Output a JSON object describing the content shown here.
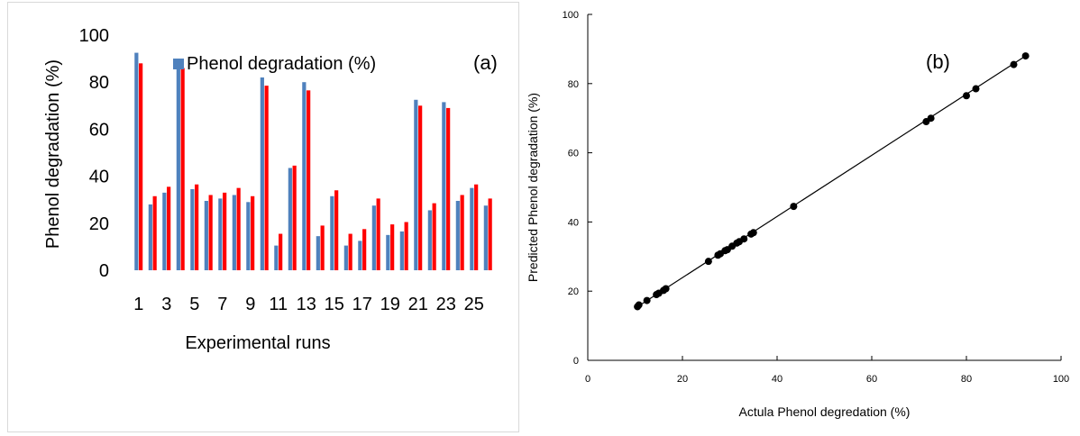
{
  "chart_data": [
    {
      "type": "bar",
      "panel_label": "(a)",
      "title": "",
      "xlabel": "Experimental runs",
      "ylabel": "Phenol degradation (%)",
      "ylim": [
        0,
        100
      ],
      "yticks": [
        "0",
        "20",
        "40",
        "60",
        "80",
        "100"
      ],
      "xtick_labels": [
        "1",
        "3",
        "5",
        "7",
        "9",
        "11",
        "13",
        "15",
        "17",
        "19",
        "21",
        "23",
        "25"
      ],
      "legend": {
        "position": "top",
        "label": "Phenol degradation (%)"
      },
      "categories": [
        "1",
        "2",
        "3",
        "4",
        "5",
        "6",
        "7",
        "8",
        "9",
        "10",
        "11",
        "12",
        "13",
        "14",
        "15",
        "16",
        "17",
        "18",
        "19",
        "20",
        "21",
        "22",
        "23",
        "24",
        "25",
        "26"
      ],
      "series": [
        {
          "name": "Phenol degradation (%)",
          "color": "#4f81bd",
          "values": [
            92.5,
            28,
            33,
            90,
            34.5,
            29.5,
            30.5,
            32,
            29,
            82,
            10.5,
            43.5,
            80,
            14.5,
            31.5,
            10.5,
            12.5,
            27.5,
            15,
            16.5,
            72.5,
            25.5,
            71.5,
            29.5,
            35,
            27.5
          ]
        },
        {
          "name": "",
          "color": "#ff0000",
          "values": [
            88,
            31.5,
            35.5,
            86,
            36.5,
            32,
            33,
            35,
            31.5,
            78.5,
            15.5,
            44.5,
            76.5,
            19,
            34,
            15.5,
            17.5,
            30.5,
            19.5,
            20.5,
            70,
            28.5,
            69,
            32,
            36.5,
            30.5
          ]
        }
      ]
    },
    {
      "type": "scatter",
      "panel_label": "(b)",
      "title": "",
      "xlabel": "Actula Phenol degredation (%)",
      "ylabel": "Predicted Phenol degradation (%)",
      "xlim": [
        0,
        100
      ],
      "ylim": [
        0,
        100
      ],
      "xticks": [
        "0",
        "20",
        "40",
        "60",
        "80",
        "100"
      ],
      "yticks": [
        "0",
        "20",
        "40",
        "60",
        "80",
        "100"
      ],
      "grid": false,
      "fit_line": {
        "x": [
          10.5,
          92.5
        ],
        "y": [
          15.5,
          88
        ]
      },
      "points": [
        [
          10.5,
          15.5
        ],
        [
          10.8,
          16.0
        ],
        [
          12.5,
          17.3
        ],
        [
          14.5,
          19.0
        ],
        [
          15.0,
          19.4
        ],
        [
          16.0,
          20.2
        ],
        [
          16.5,
          20.7
        ],
        [
          25.5,
          28.6
        ],
        [
          27.5,
          30.4
        ],
        [
          28.0,
          30.8
        ],
        [
          29.0,
          31.7
        ],
        [
          29.5,
          32.0
        ],
        [
          30.5,
          33.0
        ],
        [
          31.5,
          33.9
        ],
        [
          32.0,
          34.3
        ],
        [
          33.0,
          35.1
        ],
        [
          34.5,
          36.5
        ],
        [
          35.0,
          36.9
        ],
        [
          43.5,
          44.5
        ],
        [
          71.5,
          69.0
        ],
        [
          72.5,
          70.0
        ],
        [
          80.0,
          76.5
        ],
        [
          82.0,
          78.5
        ],
        [
          90.0,
          85.5
        ],
        [
          92.5,
          88.0
        ]
      ]
    }
  ]
}
